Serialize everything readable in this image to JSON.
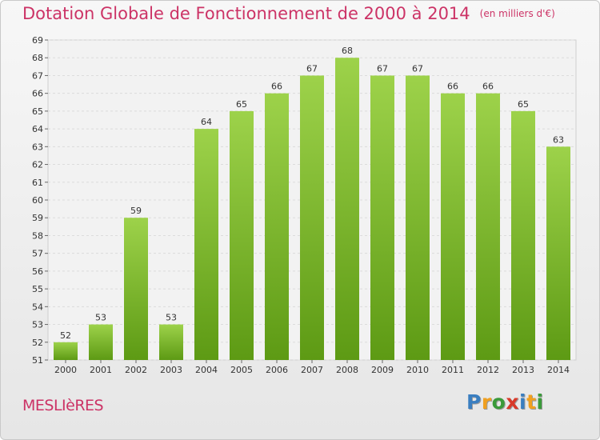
{
  "chart_data": {
    "type": "bar",
    "title": "Dotation Globale de Fonctionnement de 2000 à 2014",
    "unit": "(en milliers d'€)",
    "categories": [
      "2000",
      "2001",
      "2002",
      "2003",
      "2004",
      "2005",
      "2006",
      "2007",
      "2008",
      "2009",
      "2010",
      "2011",
      "2012",
      "2013",
      "2014"
    ],
    "values": [
      52,
      53,
      59,
      53,
      64,
      65,
      66,
      67,
      68,
      67,
      67,
      66,
      66,
      65,
      63
    ],
    "ylim": [
      51,
      69
    ],
    "ystep": 1,
    "grid": true,
    "bar_color_top": "#9dd24a",
    "bar_color_bottom": "#5d9a14"
  },
  "commune": "MESLIèRES",
  "logo": {
    "letters": [
      "P",
      "r",
      "o",
      "x",
      "i",
      "t",
      "i"
    ],
    "colors": [
      "#3a7ec0",
      "#f0a020",
      "#3a9a3a",
      "#d83a2a",
      "#3a7ec0",
      "#f0a020",
      "#3a9a3a"
    ]
  }
}
